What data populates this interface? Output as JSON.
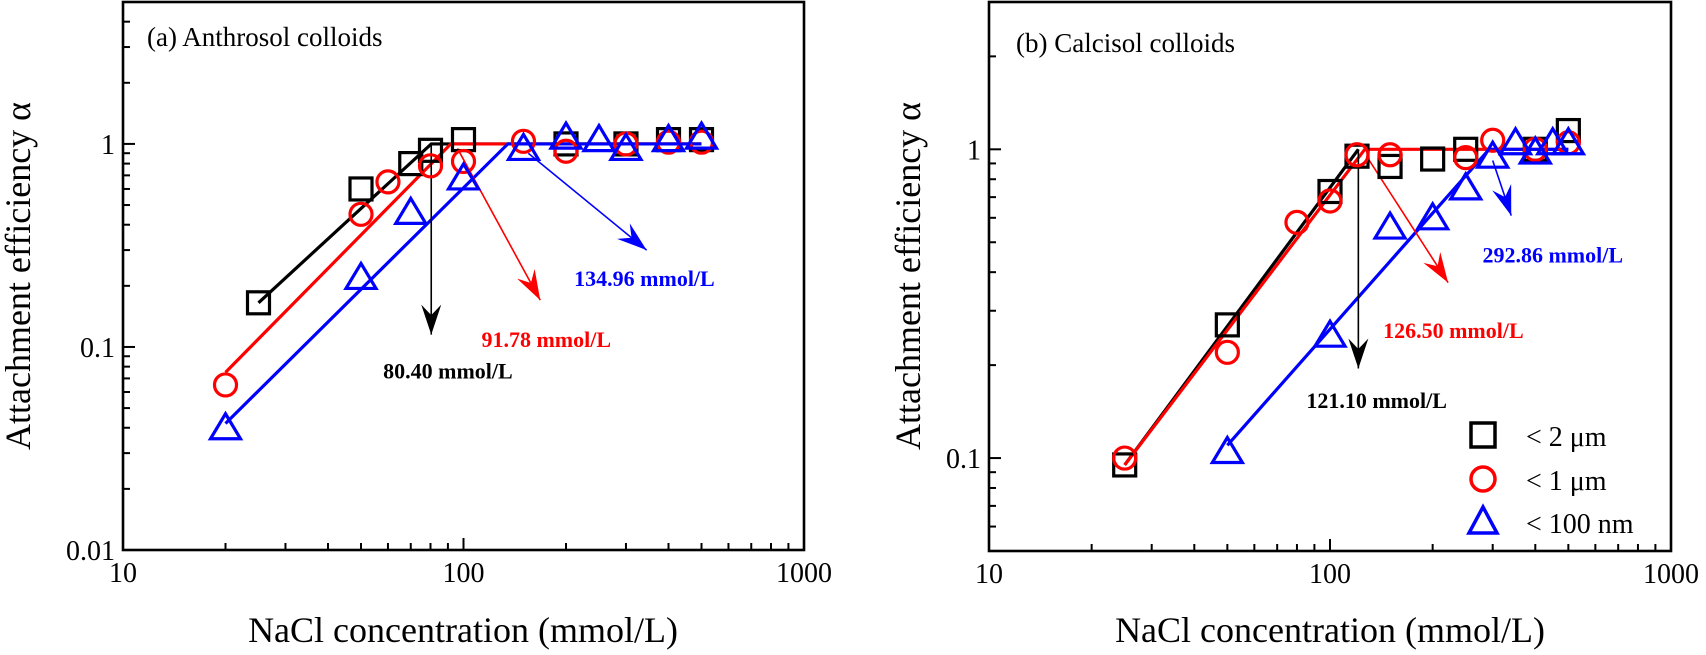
{
  "chart_data": [
    {
      "type": "scatter",
      "title": "(a) Anthrosol colloids",
      "xlabel": "NaCl concentration (mmol/L)",
      "ylabel": "Attachment efficiency α",
      "xscale": "log",
      "yscale": "log",
      "xlim": [
        10,
        1000
      ],
      "ylim": [
        0.01,
        5
      ],
      "xticks": [
        {
          "value": 10,
          "label": "10"
        },
        {
          "value": 100,
          "label": "100"
        },
        {
          "value": 1000,
          "label": "1000"
        }
      ],
      "yticks": [
        {
          "value": 0.01,
          "label": "0.01"
        },
        {
          "value": 0.1,
          "label": "0.1"
        },
        {
          "value": 1,
          "label": "1"
        }
      ],
      "grid": false,
      "legend": null,
      "series": [
        {
          "name": "< 2 μm",
          "marker": "square",
          "color": "#000000",
          "x": [
            25,
            50,
            70,
            80,
            100,
            200,
            300,
            400,
            500
          ],
          "y": [
            0.165,
            0.6,
            0.8,
            0.93,
            1.05,
            1.0,
            1.0,
            1.05,
            1.05
          ],
          "fit": {
            "x": [
              25,
              80.4,
              500
            ],
            "y": [
              0.165,
              1,
              1
            ]
          }
        },
        {
          "name": "< 1 μm",
          "marker": "circle",
          "color": "#ff0000",
          "x": [
            20,
            50,
            60,
            80,
            100,
            150,
            200,
            300,
            400,
            500
          ],
          "y": [
            0.065,
            0.45,
            0.65,
            0.78,
            0.82,
            1.03,
            0.92,
            1.0,
            1.02,
            1.02
          ],
          "fit": {
            "x": [
              20,
              91.78,
              500
            ],
            "y": [
              0.075,
              1,
              1
            ]
          }
        },
        {
          "name": "< 100 nm",
          "marker": "triangle",
          "color": "#0000ff",
          "x": [
            20,
            50,
            70,
            100,
            150,
            200,
            250,
            300,
            400,
            500
          ],
          "y": [
            0.04,
            0.22,
            0.46,
            0.68,
            0.95,
            1.08,
            1.05,
            0.95,
            1.05,
            1.08
          ],
          "fit": {
            "x": [
              20,
              134.96,
              500
            ],
            "y": [
              0.042,
              1,
              1
            ]
          }
        }
      ],
      "annotations": [
        {
          "text": "80.40 mmol/L",
          "color": "#000000",
          "arrow_from": [
            80.4,
            1.0
          ],
          "arrow_to": [
            80.4,
            0.115
          ],
          "text_at": [
            90,
            0.07
          ]
        },
        {
          "text": "91.78 mmol/L",
          "color": "#ff0000",
          "arrow_from": [
            96,
            0.95
          ],
          "arrow_to": [
            168,
            0.17
          ],
          "text_at": [
            175,
            0.1
          ]
        },
        {
          "text": "134.96 mmol/L",
          "color": "#0000ff",
          "arrow_from": [
            155,
            0.9
          ],
          "arrow_to": [
            345,
            0.3
          ],
          "text_at": [
            340,
            0.2
          ]
        }
      ]
    },
    {
      "type": "scatter",
      "title": "(b) Calcisol colloids",
      "xlabel": "NaCl concentration (mmol/L)",
      "ylabel": "Attachment efficiency α",
      "xscale": "log",
      "yscale": "log",
      "xlim": [
        10,
        1000
      ],
      "ylim": [
        0.05,
        3
      ],
      "xticks": [
        {
          "value": 10,
          "label": "10"
        },
        {
          "value": 100,
          "label": "100"
        },
        {
          "value": 1000,
          "label": "1000"
        }
      ],
      "yticks": [
        {
          "value": 0.1,
          "label": "0.1"
        },
        {
          "value": 1,
          "label": "1"
        }
      ],
      "grid": false,
      "legend": "bottom-right",
      "series": [
        {
          "name": "< 2 μm",
          "marker": "square",
          "color": "#000000",
          "x": [
            25,
            50,
            100,
            120,
            150,
            200,
            250,
            400,
            500
          ],
          "y": [
            0.095,
            0.27,
            0.73,
            0.95,
            0.88,
            0.93,
            1.0,
            1.0,
            1.15
          ],
          "fit": {
            "x": [
              25,
              121.1
            ],
            "y": [
              0.095,
              1
            ]
          }
        },
        {
          "name": "< 1 μm",
          "marker": "circle",
          "color": "#ff0000",
          "x": [
            25,
            50,
            80,
            100,
            120,
            150,
            250,
            300,
            400,
            500
          ],
          "y": [
            0.1,
            0.22,
            0.58,
            0.68,
            0.96,
            0.96,
            0.94,
            1.07,
            1.0,
            1.05
          ],
          "fit": {
            "x": [
              25,
              126.5,
              500
            ],
            "y": [
              0.095,
              1,
              1
            ]
          }
        },
        {
          "name": "< 100 nm",
          "marker": "triangle",
          "color": "#0000ff",
          "x": [
            50,
            100,
            150,
            200,
            250,
            300,
            350,
            400,
            450,
            500
          ],
          "y": [
            0.105,
            0.25,
            0.56,
            0.6,
            0.75,
            0.95,
            1.05,
            0.98,
            1.05,
            1.05
          ],
          "fit": {
            "x": [
              50,
              292.86,
              500
            ],
            "y": [
              0.11,
              1,
              1
            ]
          }
        }
      ],
      "annotations": [
        {
          "text": "121.10 mmol/L",
          "color": "#000000",
          "arrow_from": [
            121.1,
            1.0
          ],
          "arrow_to": [
            121.1,
            0.195
          ],
          "text_at": [
            137,
            0.145
          ]
        },
        {
          "text": "126.50 mmol/L",
          "color": "#ff0000",
          "arrow_from": [
            128,
            0.95
          ],
          "arrow_to": [
            222,
            0.37
          ],
          "text_at": [
            230,
            0.245
          ]
        },
        {
          "text": "292.86 mmol/L",
          "color": "#0000ff",
          "arrow_from": [
            300,
            0.92
          ],
          "arrow_to": [
            340,
            0.61
          ],
          "text_at": [
            450,
            0.43
          ]
        }
      ]
    }
  ],
  "legend_items": [
    {
      "label": "< 2 μm",
      "marker": "square",
      "color": "#000000"
    },
    {
      "label": "< 1 μm",
      "marker": "circle",
      "color": "#ff0000"
    },
    {
      "label": "< 100 nm",
      "marker": "triangle",
      "color": "#0000ff"
    }
  ]
}
